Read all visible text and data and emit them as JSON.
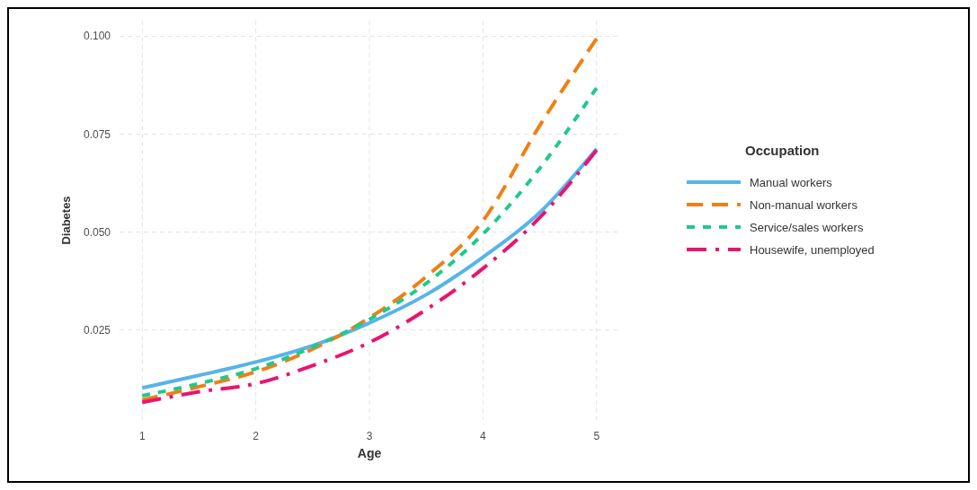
{
  "chart_data": {
    "type": "line",
    "xlabel": "Age",
    "ylabel": "Diabetes",
    "legend_title": "Occupation",
    "legend": "right",
    "grid": true,
    "x": [
      1,
      1.5,
      2,
      2.5,
      3,
      3.5,
      4,
      4.5,
      5
    ],
    "xlim": [
      0.8,
      5.2
    ],
    "xticks": [
      1,
      2,
      3,
      4,
      5
    ],
    "ylim": [
      0.002,
      0.104
    ],
    "yticks": [
      {
        "value": 0.025,
        "label": "0.025"
      },
      {
        "value": 0.05,
        "label": "0.050"
      },
      {
        "value": 0.075,
        "label": "0.075"
      },
      {
        "value": 0.1,
        "label": "0.100"
      }
    ],
    "series": [
      {
        "name": "Manual workers",
        "color": "#56b4e9",
        "line_style": "solid",
        "values": [
          0.0102,
          0.0134,
          0.0168,
          0.021,
          0.0268,
          0.034,
          0.0436,
          0.055,
          0.0713
        ]
      },
      {
        "name": "Non-manual workers",
        "color": "#f07f14",
        "line_style": "dashed",
        "values": [
          0.0071,
          0.0105,
          0.0143,
          0.0201,
          0.0281,
          0.0386,
          0.0529,
          0.0772,
          0.0994
        ]
      },
      {
        "name": "Service/sales workers",
        "color": "#20c98a",
        "line_style": "dotted",
        "values": [
          0.0082,
          0.0113,
          0.0151,
          0.0206,
          0.0277,
          0.0369,
          0.0495,
          0.0663,
          0.0868
        ]
      },
      {
        "name": "Housewife, unemployed",
        "color": "#e8156e",
        "line_style": "dashdot",
        "values": [
          0.0065,
          0.0092,
          0.0113,
          0.0159,
          0.0218,
          0.0302,
          0.0407,
          0.0537,
          0.0709
        ]
      }
    ]
  }
}
